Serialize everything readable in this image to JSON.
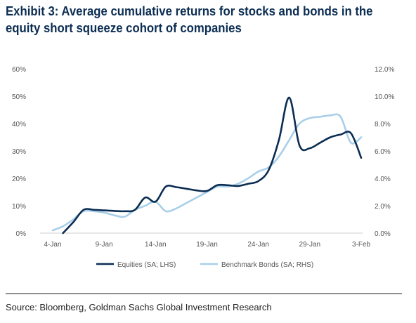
{
  "title_lines": [
    "Exhibit 3: Average cumulative returns for stocks and bonds in the",
    "equity short squeeze cohort of companies"
  ],
  "source": "Source: Bloomberg, Goldman Sachs Global Investment Research",
  "colors": {
    "equities": "#0b2d52",
    "bonds": "#a9cfe9",
    "text": "#555555",
    "axis": "#cfcfcf"
  },
  "chart_data": {
    "type": "line",
    "x_domain": [
      "2021-01-04",
      "2021-02-03"
    ],
    "x_ticks": [
      {
        "date": "2021-01-04",
        "label": "4-Jan"
      },
      {
        "date": "2021-01-09",
        "label": "9-Jan"
      },
      {
        "date": "2021-01-14",
        "label": "14-Jan"
      },
      {
        "date": "2021-01-19",
        "label": "19-Jan"
      },
      {
        "date": "2021-01-24",
        "label": "24-Jan"
      },
      {
        "date": "2021-01-29",
        "label": "29-Jan"
      },
      {
        "date": "2021-02-03",
        "label": "3-Feb"
      }
    ],
    "y_left": {
      "min": 0,
      "max": 60,
      "ticks": [
        "0%",
        "10%",
        "20%",
        "30%",
        "40%",
        "50%",
        "60%"
      ]
    },
    "y_right": {
      "min": 0,
      "max": 12,
      "ticks": [
        "0.0%",
        "2.0%",
        "4.0%",
        "6.0%",
        "8.0%",
        "10.0%",
        "12.0%"
      ]
    },
    "grid": false,
    "legend_position": "bottom",
    "series": [
      {
        "name": "Equities (SA; LHS)",
        "axis": "left",
        "x": [
          "2021-01-05",
          "2021-01-06",
          "2021-01-07",
          "2021-01-08",
          "2021-01-09",
          "2021-01-10",
          "2021-01-11",
          "2021-01-12",
          "2021-01-13",
          "2021-01-14",
          "2021-01-15",
          "2021-01-16",
          "2021-01-17",
          "2021-01-18",
          "2021-01-19",
          "2021-01-20",
          "2021-01-21",
          "2021-01-22",
          "2021-01-23",
          "2021-01-24",
          "2021-01-25",
          "2021-01-26",
          "2021-01-27",
          "2021-01-28",
          "2021-01-29",
          "2021-01-30",
          "2021-01-31",
          "2021-02-01",
          "2021-02-02",
          "2021-02-03"
        ],
        "values": [
          0,
          4,
          8.5,
          8.5,
          8.3,
          8.1,
          8.0,
          8.5,
          13.0,
          11.5,
          17.0,
          16.8,
          16.2,
          15.6,
          15.4,
          17.5,
          17.5,
          17.2,
          18.0,
          19.0,
          23.0,
          34.0,
          49.5,
          32.0,
          31.0,
          33.0,
          35.0,
          36.0,
          36.5,
          27.5
        ]
      },
      {
        "name": "Benchmark Bonds (SA; RHS)",
        "axis": "right",
        "x": [
          "2021-01-04",
          "2021-01-05",
          "2021-01-06",
          "2021-01-07",
          "2021-01-08",
          "2021-01-09",
          "2021-01-10",
          "2021-01-11",
          "2021-01-12",
          "2021-01-13",
          "2021-01-14",
          "2021-01-15",
          "2021-01-16",
          "2021-01-17",
          "2021-01-18",
          "2021-01-19",
          "2021-01-20",
          "2021-01-21",
          "2021-01-22",
          "2021-01-23",
          "2021-01-24",
          "2021-01-25",
          "2021-01-26",
          "2021-01-27",
          "2021-01-28",
          "2021-01-29",
          "2021-01-30",
          "2021-01-31",
          "2021-02-01",
          "2021-02-02",
          "2021-02-03"
        ],
        "values": [
          0.2,
          0.5,
          1.0,
          1.6,
          1.6,
          1.5,
          1.3,
          1.2,
          1.7,
          2.0,
          2.3,
          1.6,
          1.8,
          2.2,
          2.6,
          3.0,
          3.4,
          3.4,
          3.6,
          4.0,
          4.5,
          4.8,
          5.6,
          6.8,
          8.0,
          8.4,
          8.5,
          8.6,
          8.5,
          6.6,
          7.0
        ]
      }
    ]
  }
}
